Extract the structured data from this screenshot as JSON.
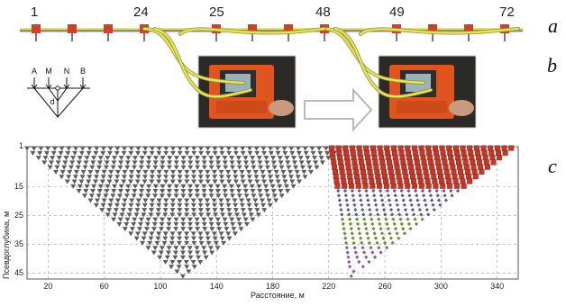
{
  "panel_letters": [
    "a",
    "b",
    "c"
  ],
  "electrode_labels": [
    "1",
    "24",
    "25",
    "48",
    "49",
    "72"
  ],
  "schematic": {
    "electrodes": [
      "A",
      "M",
      "N",
      "B"
    ],
    "depth_label": "d"
  },
  "colors": {
    "cable": "#e7e25a",
    "connector": "#c8432a",
    "device": "#e0541f",
    "grid": "#9a9a9a",
    "series_first_spread": "#5c5c5c",
    "series_second_spread_top": "#c0392b",
    "series_second_spread_mid": "#5a5a8a",
    "series_second_spread_low": "#6b8a3a",
    "series_second_spread_deep": "#8a5a8a"
  },
  "chart_data": {
    "type": "scatter",
    "xlabel": "Расстояние, м",
    "ylabel": "Псевдоглубина, м",
    "xlim": [
      5,
      355
    ],
    "ylim": [
      1,
      47
    ],
    "x_ticks": [
      20,
      60,
      100,
      140,
      180,
      220,
      260,
      300,
      340
    ],
    "y_ticks": [
      1,
      15,
      25,
      35,
      45
    ],
    "grid": true,
    "series": [
      {
        "marker": "triangle",
        "color": "#5c5c5c",
        "apex": [
          116,
          46
        ],
        "x_span_top": [
          5,
          228
        ]
      },
      {
        "marker": "square",
        "color": "#c0392b",
        "apex": [
          236,
          46
        ],
        "x_span_top": [
          222,
          350
        ],
        "depth_bands": [
          [
            1,
            15
          ],
          [
            15,
            25
          ],
          [
            25,
            35
          ],
          [
            35,
            46
          ]
        ],
        "band_colors": [
          "#c0392b",
          "#5a5a8a",
          "#6b8a3a",
          "#8a5a8a"
        ]
      }
    ]
  }
}
